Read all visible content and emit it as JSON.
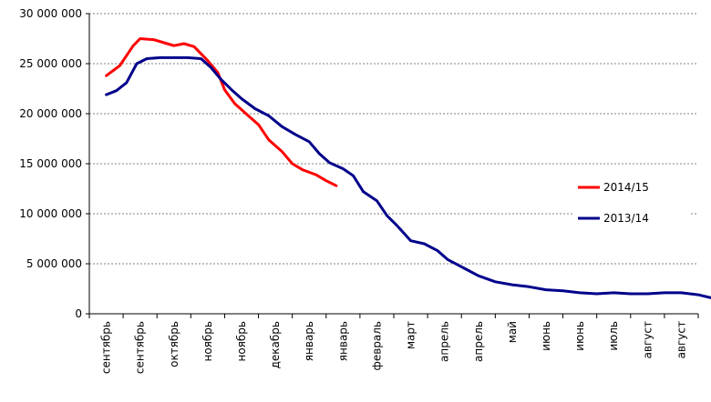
{
  "chart_data": {
    "type": "line",
    "categories": [
      "сентябрь",
      "сентябрь",
      "октябрь",
      "ноябрь",
      "ноябрь",
      "декабрь",
      "январь",
      "январь",
      "февраль",
      "март",
      "апрель",
      "апрель",
      "май",
      "июнь",
      "июнь",
      "июль",
      "август",
      "август"
    ],
    "yticks": [
      "0",
      "5 000 000",
      "10 000 000",
      "15 000 000",
      "20 000 000",
      "25 000 000",
      "30 000 000"
    ],
    "ylim": [
      0,
      30000000
    ],
    "grid": true,
    "legend_position": "right",
    "series": [
      {
        "name": "2014/15",
        "color": "#ff0000",
        "points": [
          [
            0.0,
            23800000
          ],
          [
            0.4,
            24800000
          ],
          [
            0.8,
            26800000
          ],
          [
            1.0,
            27500000
          ],
          [
            1.4,
            27400000
          ],
          [
            1.8,
            27000000
          ],
          [
            2.0,
            26800000
          ],
          [
            2.3,
            27000000
          ],
          [
            2.6,
            26700000
          ],
          [
            3.0,
            25300000
          ],
          [
            3.3,
            24100000
          ],
          [
            3.5,
            22400000
          ],
          [
            3.8,
            21000000
          ],
          [
            4.2,
            19800000
          ],
          [
            4.5,
            18900000
          ],
          [
            4.8,
            17400000
          ],
          [
            5.2,
            16200000
          ],
          [
            5.5,
            15000000
          ],
          [
            5.8,
            14400000
          ],
          [
            6.2,
            13900000
          ],
          [
            6.5,
            13300000
          ],
          [
            6.8,
            12800000
          ]
        ]
      },
      {
        "name": "2013/14",
        "color": "#00008b",
        "points": [
          [
            0.0,
            21900000
          ],
          [
            0.3,
            22300000
          ],
          [
            0.6,
            23100000
          ],
          [
            0.9,
            25000000
          ],
          [
            1.2,
            25500000
          ],
          [
            1.6,
            25600000
          ],
          [
            2.0,
            25600000
          ],
          [
            2.4,
            25600000
          ],
          [
            2.8,
            25500000
          ],
          [
            3.1,
            24600000
          ],
          [
            3.4,
            23400000
          ],
          [
            3.7,
            22400000
          ],
          [
            4.0,
            21500000
          ],
          [
            4.4,
            20500000
          ],
          [
            4.8,
            19800000
          ],
          [
            5.2,
            18700000
          ],
          [
            5.6,
            17900000
          ],
          [
            6.0,
            17200000
          ],
          [
            6.3,
            16000000
          ],
          [
            6.6,
            15100000
          ],
          [
            7.0,
            14500000
          ],
          [
            7.3,
            13800000
          ],
          [
            7.6,
            12200000
          ],
          [
            8.0,
            11300000
          ],
          [
            8.3,
            9800000
          ],
          [
            8.6,
            8800000
          ],
          [
            9.0,
            7300000
          ],
          [
            9.4,
            7000000
          ],
          [
            9.8,
            6300000
          ],
          [
            10.1,
            5400000
          ],
          [
            10.5,
            4700000
          ],
          [
            11.0,
            3800000
          ],
          [
            11.5,
            3200000
          ],
          [
            12.0,
            2900000
          ],
          [
            12.5,
            2700000
          ],
          [
            13.0,
            2400000
          ],
          [
            13.5,
            2300000
          ],
          [
            14.0,
            2100000
          ],
          [
            14.5,
            2000000
          ],
          [
            15.0,
            2100000
          ],
          [
            15.5,
            2000000
          ],
          [
            16.0,
            2000000
          ],
          [
            16.5,
            2100000
          ],
          [
            17.0,
            2100000
          ],
          [
            17.5,
            1900000
          ],
          [
            18.0,
            1500000
          ],
          [
            18.3,
            1450000
          ],
          [
            18.5,
            1400000
          ]
        ]
      }
    ]
  }
}
